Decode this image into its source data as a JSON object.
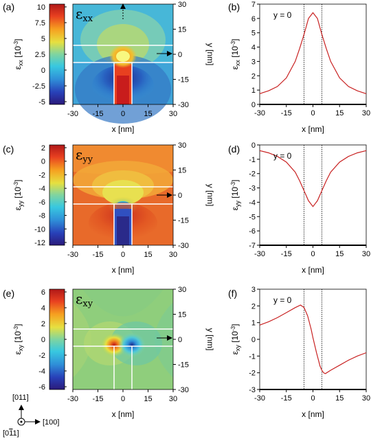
{
  "colorbars": [
    {
      "ticks": [
        "10",
        "7.5",
        "5",
        "2.5",
        "0",
        "-2.5",
        "-5"
      ],
      "label_sym": "ε",
      "label_sub": "xx",
      "label_unit": " [10",
      "label_sup": "-3",
      "label_end": "]"
    },
    {
      "ticks": [
        "2",
        "0",
        "-2",
        "-4",
        "-6",
        "-8",
        "-10",
        "-12"
      ],
      "label_sym": "ε",
      "label_sub": "yy",
      "label_unit": " [10",
      "label_sup": "-3",
      "label_end": "]"
    },
    {
      "ticks": [
        "6",
        "4",
        "2",
        "0",
        "-2",
        "-4",
        "-6"
      ],
      "label_sym": "ε",
      "label_sub": "xy",
      "label_unit": " [10",
      "label_sup": "-3",
      "label_end": "]"
    }
  ],
  "maps": [
    {
      "panel": "(a)",
      "sym": "ε",
      "sub": "xx"
    },
    {
      "panel": "(c)",
      "sym": "ε",
      "sub": "yy"
    },
    {
      "panel": "(e)",
      "sym": "ε",
      "sub": "xy"
    }
  ],
  "map_axes": {
    "x_ticks": [
      "-30",
      "-15",
      "0",
      "15",
      "30"
    ],
    "y_ticks": [
      "30",
      "15",
      "0",
      "-15",
      "-30"
    ],
    "xlabel": "x [nm]",
    "ylabel": "y [nm]"
  },
  "chart_data": [
    {
      "type": "line",
      "panel": "(b)",
      "annotation": "y = 0",
      "x": [
        -30,
        -25,
        -20,
        -15,
        -10,
        -7.5,
        -5,
        -2.5,
        0,
        2.5,
        5,
        7.5,
        10,
        15,
        20,
        25,
        30
      ],
      "y": [
        0.75,
        0.95,
        1.25,
        1.85,
        3.0,
        3.9,
        4.9,
        6.0,
        6.4,
        6.0,
        4.9,
        3.9,
        3.0,
        1.85,
        1.25,
        0.95,
        0.75
      ],
      "xlim": [
        -30,
        30
      ],
      "ylim": [
        0,
        7
      ],
      "x_ticks": [
        "-30",
        "-15",
        "0",
        "15",
        "30"
      ],
      "y_ticks": [
        "7",
        "6",
        "5",
        "4",
        "3",
        "2",
        "1",
        "0"
      ],
      "xlabel": "x [nm]",
      "ylabel_sym": "ε",
      "ylabel_sub": "xx",
      "ylabel_unit": " [10",
      "ylabel_sup": "-3",
      "ylabel_end": "]"
    },
    {
      "type": "line",
      "panel": "(d)",
      "annotation": "y = 0",
      "x": [
        -30,
        -25,
        -20,
        -15,
        -10,
        -7.5,
        -5,
        -2.5,
        0,
        2.5,
        5,
        7.5,
        10,
        15,
        20,
        25,
        30
      ],
      "y": [
        -0.4,
        -0.55,
        -0.8,
        -1.2,
        -1.9,
        -2.5,
        -3.2,
        -3.9,
        -4.3,
        -3.9,
        -3.2,
        -2.5,
        -1.9,
        -1.2,
        -0.8,
        -0.55,
        -0.4
      ],
      "xlim": [
        -30,
        30
      ],
      "ylim": [
        -7,
        0
      ],
      "x_ticks": [
        "-30",
        "-15",
        "0",
        "15",
        "30"
      ],
      "y_ticks": [
        "0",
        "-1",
        "-2",
        "-3",
        "-4",
        "-5",
        "-6",
        "-7"
      ],
      "xlabel": "x [nm]",
      "ylabel_sym": "ε",
      "ylabel_sub": "yy",
      "ylabel_unit": " [10",
      "ylabel_sup": "-3",
      "ylabel_end": "]"
    },
    {
      "type": "line",
      "panel": "(f)",
      "annotation": "y = 0",
      "x": [
        -30,
        -25,
        -20,
        -15,
        -10,
        -7,
        -5,
        -3,
        -1,
        0,
        2,
        4,
        5,
        6,
        7,
        10,
        15,
        20,
        25,
        30
      ],
      "y": [
        0.85,
        1.05,
        1.3,
        1.6,
        1.9,
        2.05,
        1.9,
        1.4,
        0.6,
        0.1,
        -0.8,
        -1.6,
        -1.85,
        -2.0,
        -2.05,
        -1.85,
        -1.55,
        -1.25,
        -1.0,
        -0.8
      ],
      "xlim": [
        -30,
        30
      ],
      "ylim": [
        -3,
        3
      ],
      "x_ticks": [
        "-30",
        "-15",
        "0",
        "15",
        "30"
      ],
      "y_ticks": [
        "3",
        "2",
        "1",
        "0",
        "-1",
        "-2",
        "-3"
      ],
      "xlabel": "x [nm]",
      "ylabel_sym": "ε",
      "ylabel_sub": "xy",
      "ylabel_unit": " [10",
      "ylabel_sup": "-3",
      "ylabel_end": "]"
    }
  ],
  "orientation": {
    "up": "[011]",
    "right": "[100]",
    "out": "[0",
    "out_bar": "1",
    "out_end": "1]"
  }
}
